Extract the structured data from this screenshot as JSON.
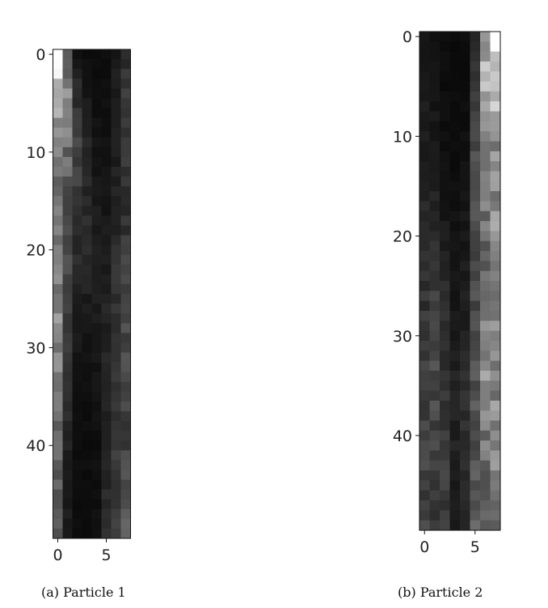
{
  "chart_data": [
    {
      "type": "heatmap",
      "colormap": "gray",
      "cols": 8,
      "rows": 50,
      "x_ticks": [
        0,
        5
      ],
      "y_ticks": [
        0,
        10,
        20,
        30,
        40
      ],
      "caption": "(a) Particle 1",
      "column_profiles": [
        [
          1.0,
          0.7,
          0.5,
          0.45,
          0.52,
          0.55,
          0.5,
          0.45,
          0.4,
          0.38
        ],
        [
          0.35,
          0.55,
          0.4,
          0.3,
          0.26,
          0.24,
          0.2,
          0.15,
          0.12,
          0.1
        ],
        [
          0.08,
          0.2,
          0.28,
          0.22,
          0.15,
          0.1,
          0.08,
          0.06,
          0.05,
          0.05
        ],
        [
          0.05,
          0.1,
          0.15,
          0.18,
          0.14,
          0.1,
          0.07,
          0.05,
          0.05,
          0.05
        ],
        [
          0.05,
          0.06,
          0.08,
          0.12,
          0.12,
          0.1,
          0.08,
          0.06,
          0.06,
          0.06
        ],
        [
          0.06,
          0.06,
          0.07,
          0.09,
          0.12,
          0.14,
          0.13,
          0.12,
          0.14,
          0.18
        ],
        [
          0.1,
          0.12,
          0.12,
          0.14,
          0.18,
          0.22,
          0.2,
          0.2,
          0.22,
          0.28
        ],
        [
          0.15,
          0.25,
          0.2,
          0.18,
          0.25,
          0.3,
          0.26,
          0.24,
          0.28,
          0.35
        ]
      ]
    },
    {
      "type": "heatmap",
      "colormap": "gray",
      "cols": 8,
      "rows": 50,
      "x_ticks": [
        0,
        5
      ],
      "y_ticks": [
        0,
        10,
        20,
        30,
        40
      ],
      "caption": "(b) Particle 2",
      "column_profiles": [
        [
          0.08,
          0.1,
          0.12,
          0.15,
          0.18,
          0.2,
          0.22,
          0.24,
          0.25,
          0.26
        ],
        [
          0.06,
          0.08,
          0.1,
          0.14,
          0.2,
          0.25,
          0.28,
          0.28,
          0.22,
          0.2
        ],
        [
          0.05,
          0.05,
          0.06,
          0.08,
          0.12,
          0.18,
          0.2,
          0.2,
          0.24,
          0.22
        ],
        [
          0.04,
          0.05,
          0.05,
          0.06,
          0.08,
          0.1,
          0.12,
          0.14,
          0.12,
          0.1
        ],
        [
          0.05,
          0.05,
          0.06,
          0.08,
          0.1,
          0.12,
          0.16,
          0.2,
          0.16,
          0.14
        ],
        [
          0.15,
          0.2,
          0.3,
          0.35,
          0.3,
          0.28,
          0.3,
          0.34,
          0.32,
          0.35
        ],
        [
          0.6,
          0.7,
          0.55,
          0.45,
          0.4,
          0.45,
          0.55,
          0.5,
          0.4,
          0.38
        ],
        [
          1.0,
          0.75,
          0.55,
          0.5,
          0.6,
          0.55,
          0.5,
          0.55,
          0.5,
          0.4
        ]
      ]
    }
  ]
}
